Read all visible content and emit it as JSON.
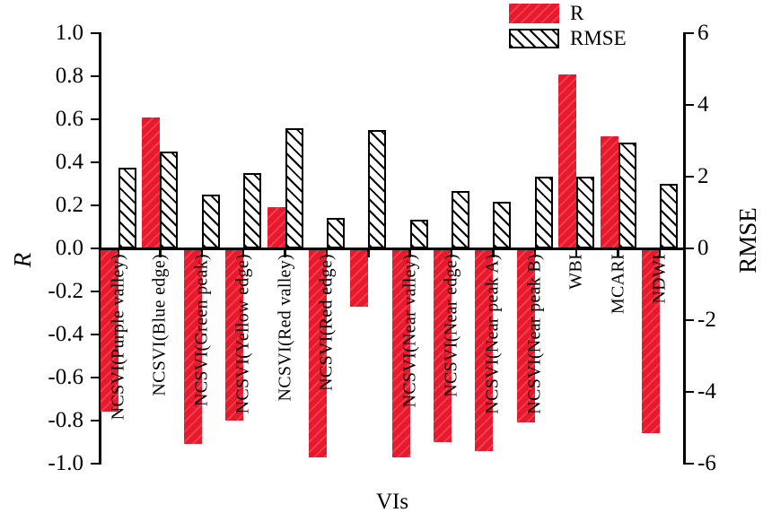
{
  "chart_data": {
    "type": "bar",
    "orientation": "vertical",
    "grid": false,
    "categories": [
      "NCSVI(Purple valley)",
      "NCSVI(Blue edge)",
      "NCSVI(Green peak)",
      "NCSVI(Yellow edge)",
      "NCSVI(Red valley)",
      "NCSVI(Red edge)",
      "",
      "NCSVI(Near valley)",
      "NCSVI(Near edge)",
      "NCSVI(Near peak A)",
      "NCSVI(Near peak B)",
      "WBI",
      "MCARI",
      "NDWI"
    ],
    "series": [
      {
        "name": "R",
        "axis": "left",
        "style": "solid-red",
        "color": "#e8192c",
        "values": [
          -0.76,
          0.61,
          -0.91,
          -0.8,
          0.19,
          -0.97,
          -0.27,
          -0.97,
          -0.9,
          -0.94,
          -0.81,
          0.81,
          0.52,
          -0.86
        ]
      },
      {
        "name": "RMSE",
        "axis": "right",
        "style": "black-diagonal-hatch",
        "color": "#ffffff",
        "values": [
          2.25,
          2.7,
          1.5,
          2.1,
          3.35,
          0.85,
          3.3,
          0.8,
          1.6,
          1.3,
          2.0,
          2.0,
          2.95,
          1.8
        ]
      }
    ],
    "xlabel": "VIs",
    "left_axis": {
      "label": "R",
      "min": -1,
      "max": 1,
      "tick_step": 0.2,
      "tick_labels": [
        "1.0",
        "0.8",
        "0.6",
        "0.4",
        "0.2",
        "0.0",
        "-0.2",
        "-0.4",
        "-0.6",
        "-0.8",
        "-1.0"
      ]
    },
    "right_axis": {
      "label": "RMSE",
      "min": -6,
      "max": 6,
      "tick_step": 2,
      "tick_labels": [
        "6",
        "4",
        "2",
        "0",
        "-2",
        "-4",
        "-6"
      ]
    },
    "legend": {
      "position": "top-center",
      "entries": [
        "R",
        "RMSE"
      ]
    }
  },
  "colors": {
    "bar_red": "#e8192c",
    "axis": "#000000",
    "background": "#ffffff"
  }
}
